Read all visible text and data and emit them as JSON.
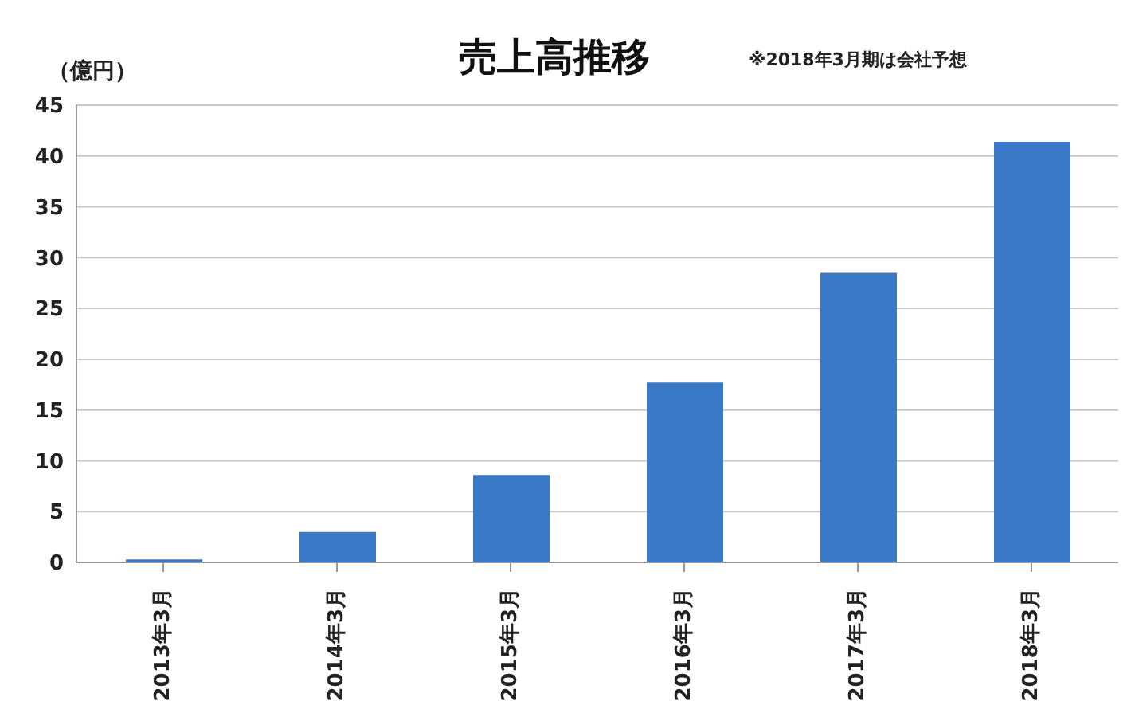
{
  "chart_data": {
    "type": "bar",
    "title": "売上高推移",
    "ylabel": "（億円）",
    "annotations": [
      "※2018年3月期は会社予想"
    ],
    "categories": [
      "2013年3月",
      "2014年3月",
      "2015年3月",
      "2016年3月",
      "2017年3月",
      "2018年3月"
    ],
    "values": [
      0.3,
      3.0,
      8.6,
      17.7,
      28.5,
      41.4
    ],
    "color": "#3a78c8",
    "ylim": [
      0,
      45
    ],
    "yticks": [
      0,
      5,
      10,
      15,
      20,
      25,
      30,
      35,
      40,
      45
    ],
    "grid": "y"
  }
}
